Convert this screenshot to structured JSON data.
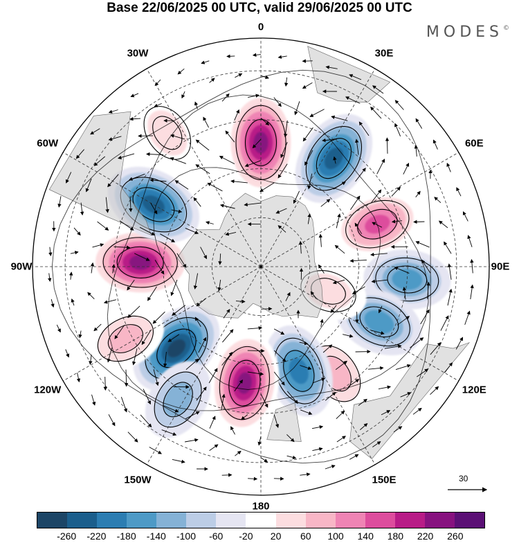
{
  "title": "Base 22/06/2025 00 UTC, valid 29/06/2025 00 UTC",
  "brand": "MODES",
  "brand_mark": "©",
  "longitude_labels": [
    "0",
    "30E",
    "60E",
    "90E",
    "120E",
    "150E",
    "180",
    "150W",
    "120W",
    "90W",
    "60W",
    "30W"
  ],
  "reference_vector_value": "30",
  "colorbar": {
    "colors": [
      "#1c4566",
      "#1b5e8c",
      "#2c7db2",
      "#4e9ac6",
      "#85b2d6",
      "#bccde6",
      "#e5e5f2",
      "#ffffff",
      "#fcdde0",
      "#f8b6c6",
      "#ef84b4",
      "#dd4d9d",
      "#b81c87",
      "#87127f",
      "#5b1075"
    ],
    "tick_labels": [
      "-260",
      "-220",
      "-180",
      "-140",
      "-100",
      "-60",
      "-20",
      "20",
      "60",
      "100",
      "140",
      "180",
      "220",
      "260"
    ]
  },
  "anomaly_cells": [
    {
      "lon": 0,
      "lat": -52,
      "value": 280
    },
    {
      "lon": 34,
      "lat": -50,
      "value": -230
    },
    {
      "lon": 70,
      "lat": -52,
      "value": 170
    },
    {
      "lon": 95,
      "lat": -45,
      "value": -140
    },
    {
      "lon": 115,
      "lat": -50,
      "value": -160
    },
    {
      "lon": 145,
      "lat": -50,
      "value": 120
    },
    {
      "lon": 160,
      "lat": -56,
      "value": -200
    },
    {
      "lon": 188,
      "lat": -54,
      "value": 270
    },
    {
      "lon": 226,
      "lat": -54,
      "value": -260
    },
    {
      "lon": 212,
      "lat": -42,
      "value": -100
    },
    {
      "lon": 242,
      "lat": -43,
      "value": 90
    },
    {
      "lon": 272,
      "lat": -53,
      "value": 280
    },
    {
      "lon": 300,
      "lat": -52,
      "value": -240
    },
    {
      "lon": 325,
      "lat": -40,
      "value": 80
    },
    {
      "lon": 110,
      "lat": -68,
      "value": 60
    }
  ]
}
